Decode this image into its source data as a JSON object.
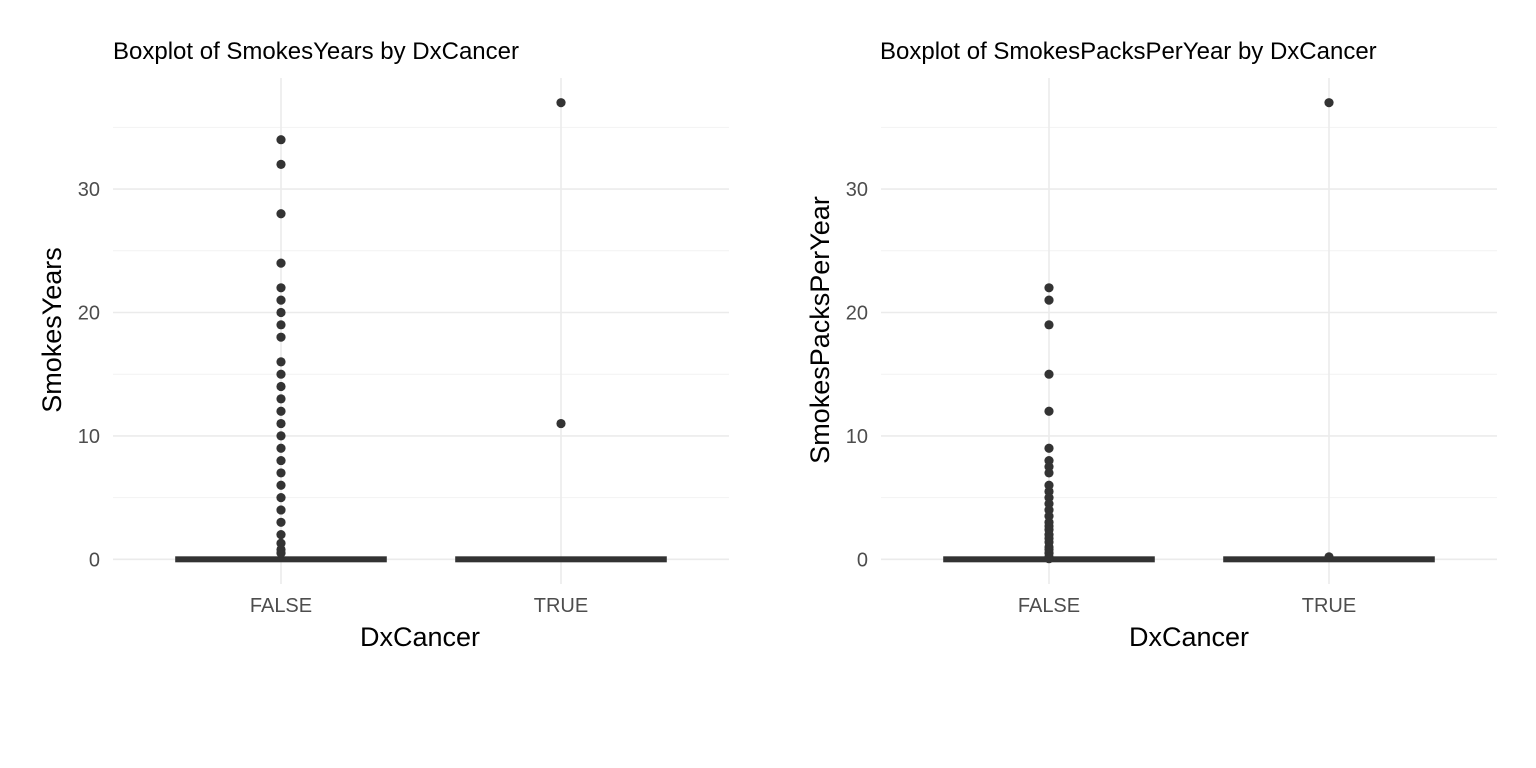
{
  "chart_data": [
    {
      "type": "boxplot",
      "title": "Boxplot of SmokesYears by DxCancer",
      "xlabel": "DxCancer",
      "ylabel": "SmokesYears",
      "categories": [
        "FALSE",
        "TRUE"
      ],
      "ylim": [
        -2,
        39
      ],
      "yticks": [
        0,
        10,
        20,
        30
      ],
      "yminor": [
        5,
        15,
        25,
        35
      ],
      "grid": true,
      "boxes": [
        {
          "category": "FALSE",
          "q1": 0,
          "median": 0,
          "q3": 0,
          "whisker_low": 0,
          "whisker_high": 0,
          "outliers": [
            34,
            32,
            28,
            24,
            22,
            21,
            20,
            19,
            18,
            16,
            15,
            14,
            13,
            12,
            11,
            10,
            9,
            8,
            7,
            6,
            5,
            4,
            3,
            2,
            1.3,
            0.8,
            0.5
          ]
        },
        {
          "category": "TRUE",
          "q1": 0,
          "median": 0,
          "q3": 0,
          "whisker_low": 0,
          "whisker_high": 0,
          "outliers": [
            37,
            11
          ]
        }
      ]
    },
    {
      "type": "boxplot",
      "title": "Boxplot of SmokesPacksPerYear by DxCancer",
      "xlabel": "DxCancer",
      "ylabel": "SmokesPacksPerYear",
      "categories": [
        "FALSE",
        "TRUE"
      ],
      "ylim": [
        -2,
        39
      ],
      "yticks": [
        0,
        10,
        20,
        30
      ],
      "yminor": [
        5,
        15,
        25,
        35
      ],
      "grid": true,
      "boxes": [
        {
          "category": "FALSE",
          "q1": 0,
          "median": 0,
          "q3": 0,
          "whisker_low": 0,
          "whisker_high": 0,
          "outliers": [
            22,
            21,
            19,
            15,
            12,
            9,
            8,
            7.5,
            7,
            6,
            5.5,
            5,
            4.5,
            4,
            3.5,
            3,
            2.7,
            2.4,
            2,
            1.7,
            1.4,
            1,
            0.8,
            0.5,
            0.2,
            0.05
          ]
        },
        {
          "category": "TRUE",
          "q1": 0,
          "median": 0,
          "q3": 0,
          "whisker_low": 0,
          "whisker_high": 0,
          "outliers": [
            37,
            0.2
          ]
        }
      ]
    }
  ]
}
